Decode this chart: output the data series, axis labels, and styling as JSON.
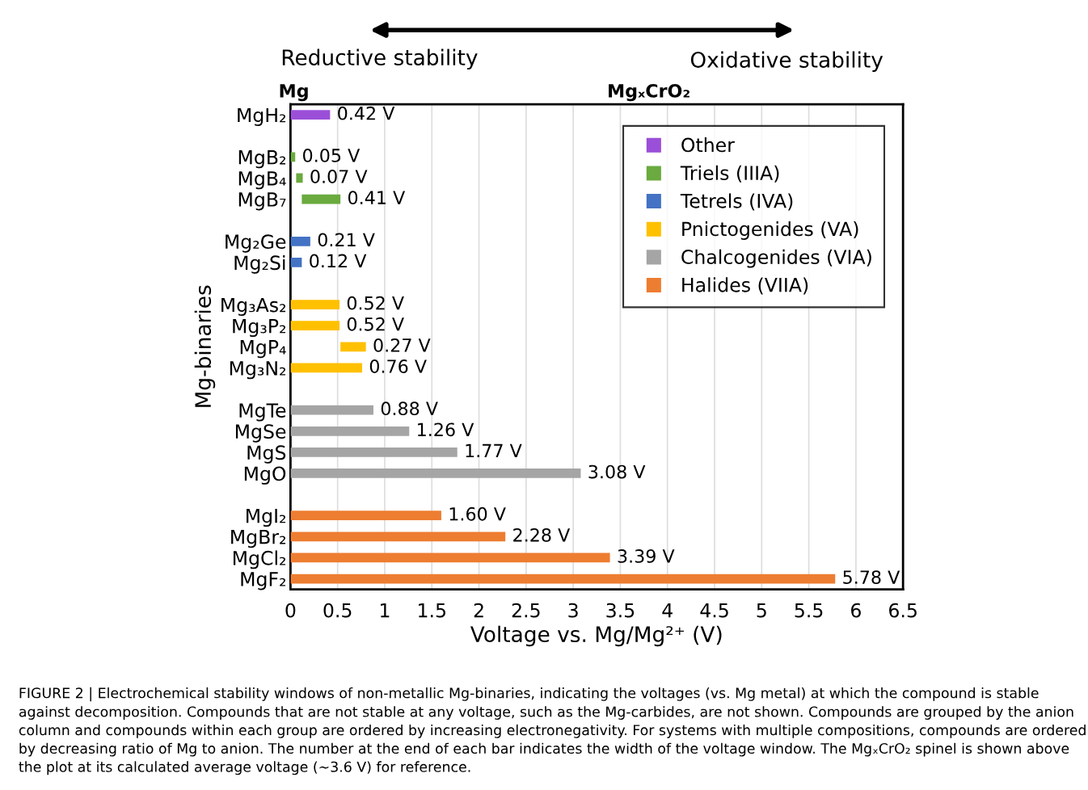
{
  "chart_data": {
    "type": "bar",
    "orientation": "horizontal",
    "categories": [
      "MgH₂",
      null,
      "MgB₂",
      "MgB₄",
      "MgB₇",
      null,
      "Mg₂Ge",
      "Mg₂Si",
      null,
      "Mg₃As₂",
      "Mg₃P₂",
      "MgP₄",
      "Mg₃N₂",
      null,
      "MgTe",
      "MgSe",
      "MgS",
      "MgO",
      null,
      "MgI₂",
      "MgBr₂",
      "MgCl₂",
      "MgF₂"
    ],
    "series": [
      {
        "name": "Other",
        "color": "#9b4fd8",
        "values": [
          0.42,
          null,
          null,
          null,
          null,
          null,
          null,
          null,
          null,
          null,
          null,
          null,
          null,
          null,
          null,
          null,
          null,
          null,
          null,
          null,
          null,
          null,
          null
        ],
        "base": [
          0,
          null,
          null,
          null,
          null,
          null,
          null,
          null,
          null,
          null,
          null,
          null,
          null,
          null,
          null,
          null,
          null,
          null,
          null,
          null,
          null,
          null,
          null
        ],
        "value_labels": [
          "0.42 V",
          null,
          null,
          null,
          null,
          null,
          null,
          null,
          null,
          null,
          null,
          null,
          null,
          null,
          null,
          null,
          null,
          null,
          null,
          null,
          null,
          null,
          null
        ]
      },
      {
        "name": "Triels (IIIA)",
        "color": "#6aaa3e",
        "values": [
          null,
          null,
          0.05,
          0.07,
          0.41,
          null,
          null,
          null,
          null,
          null,
          null,
          null,
          null,
          null,
          null,
          null,
          null,
          null,
          null,
          null,
          null,
          null,
          null
        ],
        "base": [
          null,
          null,
          0,
          0.06,
          0.12,
          null,
          null,
          null,
          null,
          null,
          null,
          null,
          null,
          null,
          null,
          null,
          null,
          null,
          null,
          null,
          null,
          null,
          null
        ],
        "value_labels": [
          null,
          null,
          "0.05 V",
          "0.07 V",
          "0.41 V",
          null,
          null,
          null,
          null,
          null,
          null,
          null,
          null,
          null,
          null,
          null,
          null,
          null,
          null,
          null,
          null,
          null,
          null
        ]
      },
      {
        "name": "Tetrels (IVA)",
        "color": "#4472c4",
        "values": [
          null,
          null,
          null,
          null,
          null,
          null,
          0.21,
          0.12,
          null,
          null,
          null,
          null,
          null,
          null,
          null,
          null,
          null,
          null,
          null,
          null,
          null,
          null,
          null
        ],
        "base": [
          null,
          null,
          null,
          null,
          null,
          null,
          0,
          0,
          null,
          null,
          null,
          null,
          null,
          null,
          null,
          null,
          null,
          null,
          null,
          null,
          null,
          null,
          null
        ],
        "value_labels": [
          null,
          null,
          null,
          null,
          null,
          null,
          "0.21 V",
          "0.12 V",
          null,
          null,
          null,
          null,
          null,
          null,
          null,
          null,
          null,
          null,
          null,
          null,
          null,
          null,
          null
        ]
      },
      {
        "name": "Pnictogenides (VA)",
        "color": "#ffc000",
        "values": [
          null,
          null,
          null,
          null,
          null,
          null,
          null,
          null,
          null,
          0.52,
          0.52,
          0.27,
          0.76,
          null,
          null,
          null,
          null,
          null,
          null,
          null,
          null,
          null,
          null
        ],
        "base": [
          null,
          null,
          null,
          null,
          null,
          null,
          null,
          null,
          null,
          0,
          0,
          0.53,
          0,
          null,
          null,
          null,
          null,
          null,
          null,
          null,
          null,
          null,
          null
        ],
        "value_labels": [
          null,
          null,
          null,
          null,
          null,
          null,
          null,
          null,
          null,
          "0.52 V",
          "0.52 V",
          "0.27 V",
          "0.76 V",
          null,
          null,
          null,
          null,
          null,
          null,
          null,
          null,
          null,
          null
        ]
      },
      {
        "name": "Chalcogenides (VIA)",
        "color": "#a5a5a5",
        "values": [
          null,
          null,
          null,
          null,
          null,
          null,
          null,
          null,
          null,
          null,
          null,
          null,
          null,
          null,
          0.88,
          1.26,
          1.77,
          3.08,
          null,
          null,
          null,
          null,
          null
        ],
        "base": [
          null,
          null,
          null,
          null,
          null,
          null,
          null,
          null,
          null,
          null,
          null,
          null,
          null,
          null,
          0,
          0,
          0,
          0,
          null,
          null,
          null,
          null,
          null
        ],
        "value_labels": [
          null,
          null,
          null,
          null,
          null,
          null,
          null,
          null,
          null,
          null,
          null,
          null,
          null,
          null,
          "0.88 V",
          "1.26 V",
          "1.77 V",
          "3.08 V",
          null,
          null,
          null,
          null,
          null
        ]
      },
      {
        "name": "Halides (VIIA)",
        "color": "#ed7d31",
        "values": [
          null,
          null,
          null,
          null,
          null,
          null,
          null,
          null,
          null,
          null,
          null,
          null,
          null,
          null,
          null,
          null,
          null,
          null,
          null,
          1.6,
          2.28,
          3.39,
          5.78
        ],
        "base": [
          null,
          null,
          null,
          null,
          null,
          null,
          null,
          null,
          null,
          null,
          null,
          null,
          null,
          null,
          null,
          null,
          null,
          null,
          null,
          0,
          0,
          0,
          0
        ],
        "value_labels": [
          null,
          null,
          null,
          null,
          null,
          null,
          null,
          null,
          null,
          null,
          null,
          null,
          null,
          null,
          null,
          null,
          null,
          null,
          null,
          "1.60 V",
          "2.28 V",
          "3.39 V",
          "5.78 V"
        ]
      }
    ],
    "xlim": [
      0,
      6.5
    ],
    "xticks": [
      0,
      0.5,
      1,
      1.5,
      2,
      2.5,
      3,
      3.5,
      4,
      4.5,
      5,
      5.5,
      6,
      6.5
    ],
    "xlabel": "Voltage vs. Mg/Mg²⁺ (V)",
    "ylabel": "Mg-binaries",
    "grid": "x",
    "legend": "top right",
    "annotations": [
      "Reductive stability",
      "Oxidative stability",
      "Mg",
      "MgₓCrO₂",
      "FIGURE 2 | Electrochemical stability windows of non-metallic Mg-binaries, indicating the voltages (vs. Mg metal) at which the compound is stable against decomposition. Compounds that are not stable at any voltage, such as the Mg-carbides, are not shown. Compounds are grouped by the anion column and compounds within each group are ordered by increasing electronegativity. For systems with multiple compositions, compounds are ordered by decreasing ratio of Mg to anion. The number at the end of each bar indicates the width of the voltage window. The MgₓCrO₂ spinel is shown above the plot at its calculated average voltage (∼3.6 V) for reference."
    ]
  }
}
